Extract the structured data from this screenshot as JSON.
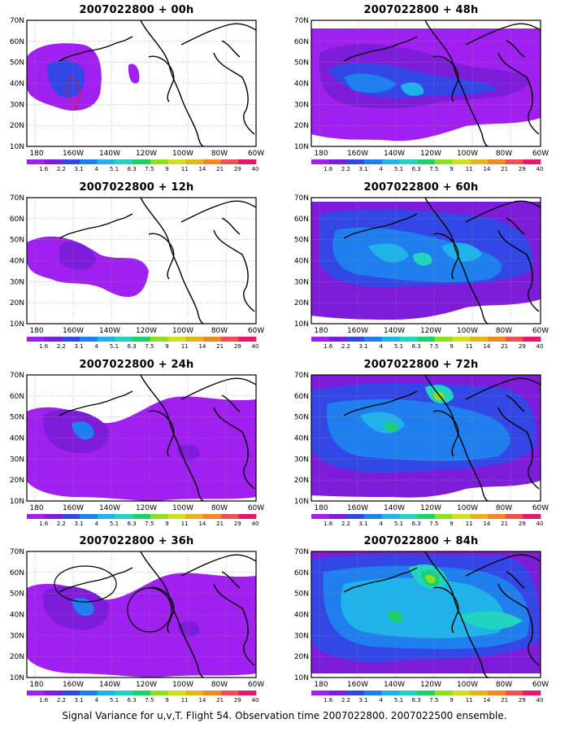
{
  "caption": "Signal Variance for u,v,T. Flight 54. Observation time 2007022800. 2007022500 ensemble.",
  "lat_labels": [
    "10N",
    "20N",
    "30N",
    "40N",
    "50N",
    "60N",
    "70N"
  ],
  "lon_labels": [
    "180",
    "160W",
    "140W",
    "120W",
    "100W",
    "80W",
    "60W"
  ],
  "colorbar": {
    "labels": [
      "1.6",
      "2.2",
      "3.1",
      "4",
      "5.1",
      "6.3",
      "7.5",
      "9",
      "11",
      "14",
      "21",
      "29",
      "40"
    ],
    "colors": [
      "#a020f0",
      "#7d1dd9",
      "#3347e6",
      "#1f7fef",
      "#1fb3ea",
      "#20d4c0",
      "#19d36a",
      "#8ee01c",
      "#cfe01c",
      "#e6b51c",
      "#ee8a22",
      "#f05050",
      "#e8156f"
    ]
  },
  "panels": [
    {
      "title": "2007022800 + 00h",
      "level": 0
    },
    {
      "title": "2007022800 + 48h",
      "level": 3
    },
    {
      "title": "2007022800 + 12h",
      "level": 1
    },
    {
      "title": "2007022800 + 60h",
      "level": 4
    },
    {
      "title": "2007022800 + 24h",
      "level": 2
    },
    {
      "title": "2007022800 + 72h",
      "level": 5
    },
    {
      "title": "2007022800 + 36h",
      "level": 2
    },
    {
      "title": "2007022800 + 84h",
      "level": 6
    }
  ]
}
